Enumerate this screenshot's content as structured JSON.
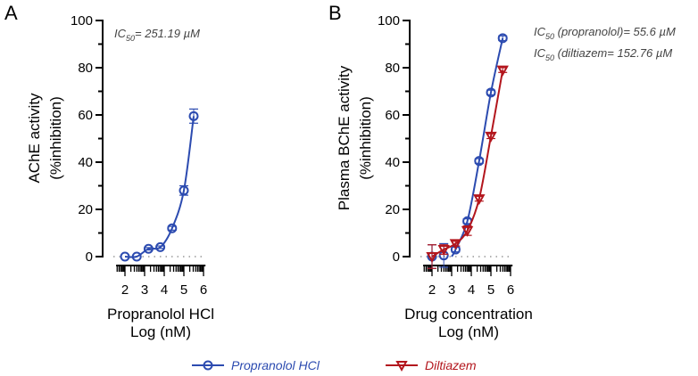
{
  "chart_data": [
    {
      "type": "line",
      "panel": "A",
      "annotation": {
        "prefix": "IC",
        "sub": "50",
        "text": "= 251.19 µM"
      },
      "xlabel": [
        "Propranolol HCl",
        "Log (nM)"
      ],
      "ylabel": [
        "AChE activity",
        "(%inhibition)"
      ],
      "xlim": [
        1.5,
        6.2
      ],
      "ylim": [
        0,
        100
      ],
      "xticks": [
        2,
        3,
        4,
        5,
        6
      ],
      "yticks": [
        0,
        20,
        40,
        60,
        80,
        100
      ],
      "series": [
        {
          "name": "Propranolol HCl",
          "color": "#2c4bb0",
          "marker": "circle",
          "x": [
            2.0,
            2.6,
            3.2,
            3.8,
            4.4,
            5.0,
            5.5
          ],
          "values": [
            0,
            0,
            3.3,
            4,
            12,
            28,
            59.5
          ],
          "error": [
            0,
            0,
            0.5,
            0.5,
            0.8,
            2,
            3
          ],
          "curve_start": 2.0
        }
      ]
    },
    {
      "type": "line",
      "panel": "B",
      "annotation": [
        {
          "prefix": "IC",
          "sub": "50",
          "text": " (propranolol)= 55.6 µM"
        },
        {
          "prefix": "IC",
          "sub": "50",
          "text": " (diltiazem= 152.76 µM"
        }
      ],
      "xlabel": [
        "Drug concentration",
        "Log (nM)"
      ],
      "ylabel": [
        "Plasma BChE activity",
        "(%inhibition)"
      ],
      "xlim": [
        1.5,
        6.2
      ],
      "ylim": [
        0,
        100
      ],
      "xticks": [
        2,
        3,
        4,
        5,
        6
      ],
      "yticks": [
        0,
        20,
        40,
        60,
        80,
        100
      ],
      "series": [
        {
          "name": "Propranolol HCl",
          "color": "#2c4bb0",
          "marker": "circle",
          "x": [
            2.0,
            2.6,
            3.2,
            3.8,
            4.4,
            5.0,
            5.6
          ],
          "values": [
            0,
            0.5,
            3,
            15,
            40.5,
            69.5,
            92.5
          ],
          "error": [
            5,
            5,
            1,
            1,
            1,
            1,
            1
          ],
          "curve_start": 3.0
        },
        {
          "name": "Diltiazem",
          "color": "#b3161d",
          "marker": "triangle-down",
          "x": [
            2.0,
            2.6,
            3.2,
            3.8,
            4.4,
            5.0,
            5.6
          ],
          "values": [
            0,
            3,
            5.5,
            11,
            24.5,
            51,
            79
          ],
          "error": [
            5,
            2,
            1,
            2,
            1,
            1,
            1
          ],
          "curve_start": 2.0
        }
      ]
    }
  ],
  "legend": [
    {
      "label": "Propranolol HCl",
      "color": "#2c4bb0",
      "marker": "circle"
    },
    {
      "label": "Diltiazem",
      "color": "#b3161d",
      "marker": "triangle-down"
    }
  ],
  "panel_labels": [
    "A",
    "B"
  ]
}
